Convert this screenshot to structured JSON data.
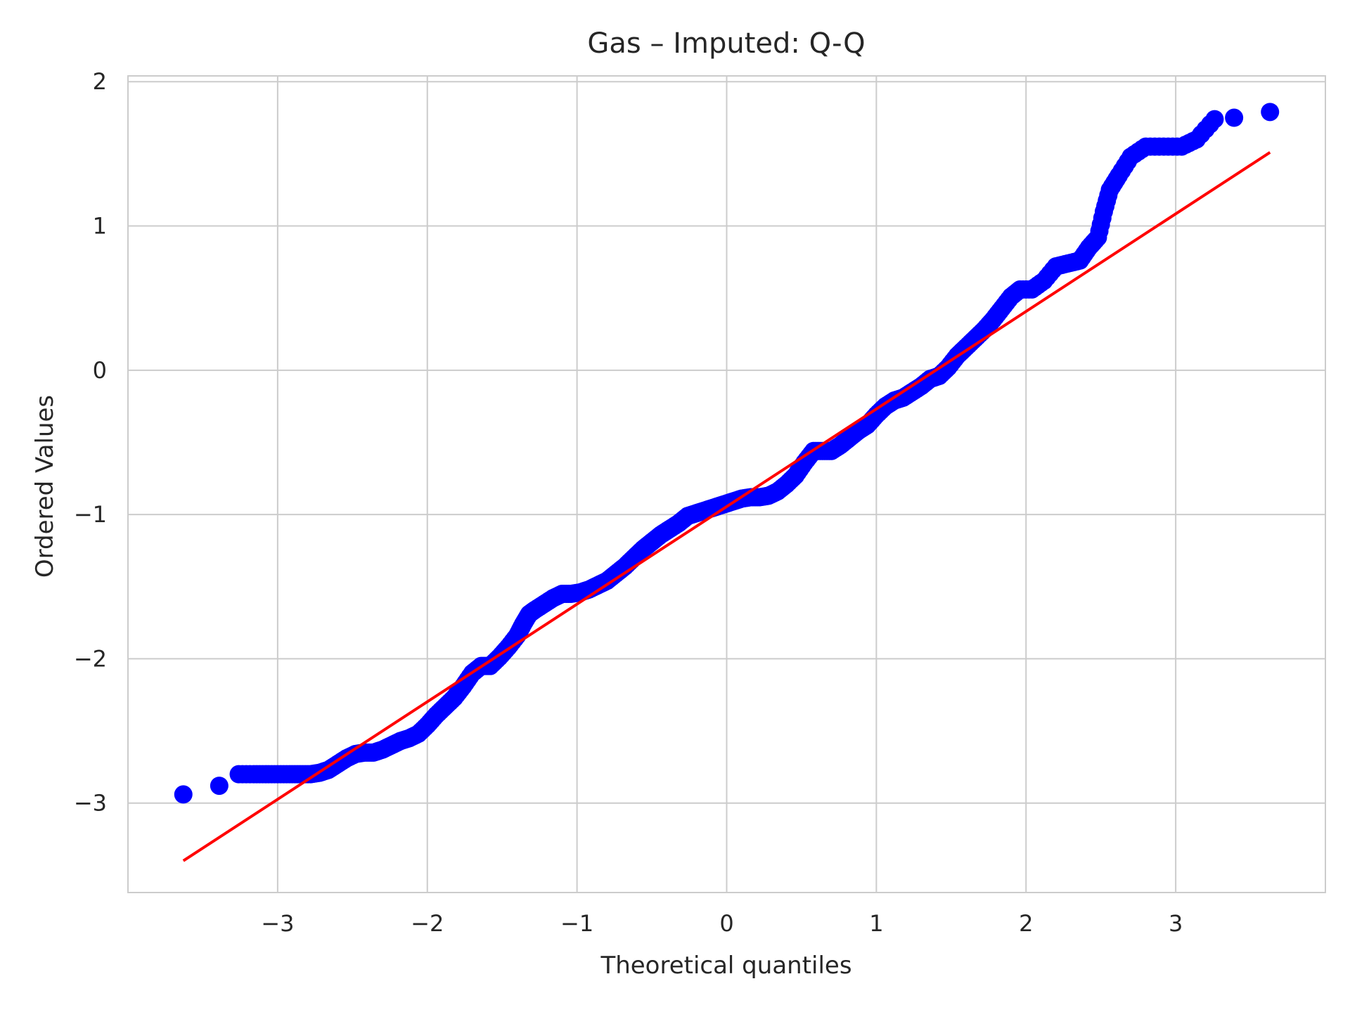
{
  "chart_data": {
    "type": "scatter",
    "title": "Gas – Imputed: Q-Q",
    "xlabel": "Theoretical quantiles",
    "ylabel": "Ordered Values",
    "xlim": [
      -4.0,
      4.0
    ],
    "ylim": [
      -3.62,
      2.04
    ],
    "xticks": [
      -3,
      -2,
      -1,
      0,
      1,
      2,
      3
    ],
    "xtick_labels": [
      "−3",
      "−2",
      "−1",
      "0",
      "1",
      "2",
      "3"
    ],
    "yticks": [
      -3,
      -2,
      -1,
      0,
      1,
      2
    ],
    "ytick_labels": [
      "−3",
      "−2",
      "−1",
      "0",
      "1",
      "2"
    ],
    "grid": true,
    "colors": {
      "points": "#0000ff",
      "fit_line": "#ff0000",
      "grid": "#cccccc",
      "spine": "#cccccc"
    },
    "series": [
      {
        "type": "scatter",
        "points": [
          [
            -3.63,
            -2.94
          ],
          [
            -3.39,
            -2.88
          ],
          [
            -3.26,
            -2.8
          ],
          [
            -3.16,
            -2.8
          ],
          [
            -3.08,
            -2.8
          ],
          [
            -3.0,
            -2.8
          ],
          [
            -2.92,
            -2.8
          ],
          [
            -2.85,
            -2.8
          ],
          [
            -2.78,
            -2.8
          ],
          [
            -2.72,
            -2.79
          ],
          [
            -2.66,
            -2.77
          ],
          [
            -2.6,
            -2.73
          ],
          [
            -2.54,
            -2.69
          ],
          [
            -2.48,
            -2.66
          ],
          [
            -2.42,
            -2.65
          ],
          [
            -2.36,
            -2.65
          ],
          [
            -2.3,
            -2.63
          ],
          [
            -2.24,
            -2.6
          ],
          [
            -2.18,
            -2.57
          ],
          [
            -2.12,
            -2.55
          ],
          [
            -2.06,
            -2.52
          ],
          [
            -2.0,
            -2.46
          ],
          [
            -1.94,
            -2.39
          ],
          [
            -1.88,
            -2.33
          ],
          [
            -1.82,
            -2.27
          ],
          [
            -1.76,
            -2.19
          ],
          [
            -1.7,
            -2.1
          ],
          [
            -1.64,
            -2.05
          ],
          [
            -1.58,
            -2.05
          ],
          [
            -1.52,
            -1.99
          ],
          [
            -1.46,
            -1.92
          ],
          [
            -1.4,
            -1.84
          ],
          [
            -1.36,
            -1.76
          ],
          [
            -1.32,
            -1.69
          ],
          [
            -1.28,
            -1.66
          ],
          [
            -1.22,
            -1.62
          ],
          [
            -1.16,
            -1.58
          ],
          [
            -1.1,
            -1.55
          ],
          [
            -1.04,
            -1.55
          ],
          [
            -0.98,
            -1.54
          ],
          [
            -0.92,
            -1.52
          ],
          [
            -0.86,
            -1.49
          ],
          [
            -0.8,
            -1.46
          ],
          [
            -0.74,
            -1.41
          ],
          [
            -0.68,
            -1.36
          ],
          [
            -0.62,
            -1.3
          ],
          [
            -0.56,
            -1.24
          ],
          [
            -0.5,
            -1.19
          ],
          [
            -0.44,
            -1.14
          ],
          [
            -0.38,
            -1.1
          ],
          [
            -0.32,
            -1.06
          ],
          [
            -0.26,
            -1.01
          ],
          [
            -0.2,
            -0.99
          ],
          [
            -0.14,
            -0.97
          ],
          [
            -0.08,
            -0.95
          ],
          [
            -0.02,
            -0.93
          ],
          [
            0.04,
            -0.91
          ],
          [
            0.1,
            -0.89
          ],
          [
            0.16,
            -0.88
          ],
          [
            0.22,
            -0.88
          ],
          [
            0.28,
            -0.87
          ],
          [
            0.34,
            -0.84
          ],
          [
            0.4,
            -0.79
          ],
          [
            0.46,
            -0.73
          ],
          [
            0.52,
            -0.64
          ],
          [
            0.58,
            -0.56
          ],
          [
            0.64,
            -0.56
          ],
          [
            0.7,
            -0.56
          ],
          [
            0.76,
            -0.52
          ],
          [
            0.82,
            -0.47
          ],
          [
            0.88,
            -0.42
          ],
          [
            0.94,
            -0.38
          ],
          [
            1.0,
            -0.31
          ],
          [
            1.06,
            -0.25
          ],
          [
            1.12,
            -0.21
          ],
          [
            1.18,
            -0.19
          ],
          [
            1.24,
            -0.15
          ],
          [
            1.3,
            -0.11
          ],
          [
            1.36,
            -0.06
          ],
          [
            1.42,
            -0.04
          ],
          [
            1.48,
            0.02
          ],
          [
            1.54,
            0.1
          ],
          [
            1.6,
            0.16
          ],
          [
            1.66,
            0.22
          ],
          [
            1.72,
            0.28
          ],
          [
            1.78,
            0.35
          ],
          [
            1.84,
            0.43
          ],
          [
            1.9,
            0.51
          ],
          [
            1.96,
            0.56
          ],
          [
            2.04,
            0.56
          ],
          [
            2.12,
            0.62
          ],
          [
            2.2,
            0.72
          ],
          [
            2.28,
            0.74
          ],
          [
            2.36,
            0.76
          ],
          [
            2.42,
            0.85
          ],
          [
            2.48,
            0.92
          ],
          [
            2.52,
            1.1
          ],
          [
            2.56,
            1.25
          ],
          [
            2.62,
            1.35
          ],
          [
            2.7,
            1.48
          ],
          [
            2.8,
            1.55
          ],
          [
            2.92,
            1.55
          ],
          [
            3.04,
            1.55
          ],
          [
            3.14,
            1.6
          ],
          [
            3.26,
            1.74
          ],
          [
            3.39,
            1.75
          ],
          [
            3.63,
            1.79
          ]
        ]
      },
      {
        "type": "line",
        "points": [
          [
            -3.63,
            -3.4
          ],
          [
            3.63,
            1.51
          ]
        ]
      }
    ]
  }
}
